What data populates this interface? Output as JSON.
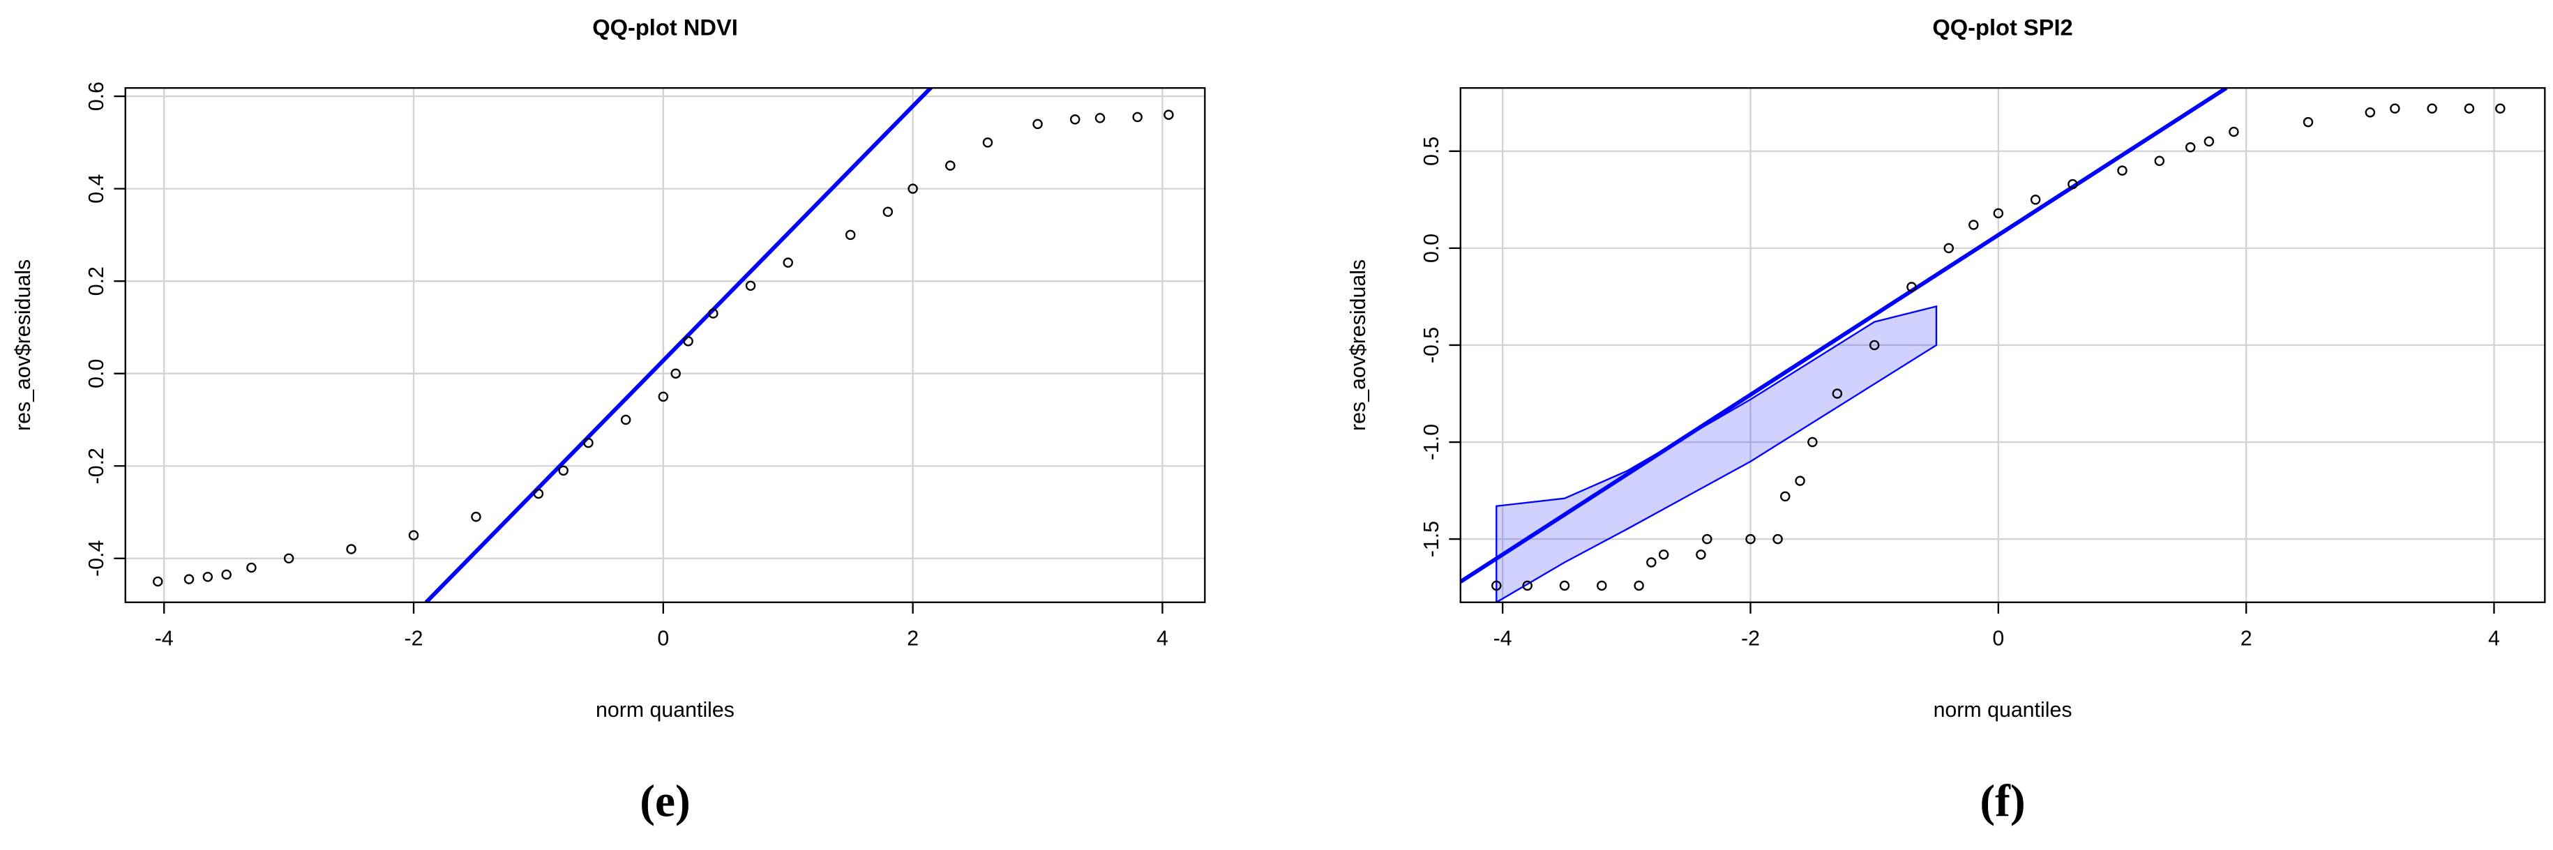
{
  "chart_data": [
    {
      "type": "scatter",
      "title": "QQ-plot NDVI",
      "x_label": "norm quantiles",
      "y_label": "res_aov$residuals",
      "caption": "(e)",
      "x": [
        -4.05,
        -3.8,
        -3.65,
        -3.5,
        -3.3,
        -3.0,
        -2.5,
        -2.0,
        -1.5,
        -1.0,
        -0.8,
        -0.6,
        -0.3,
        0.0,
        0.1,
        0.2,
        0.4,
        0.7,
        1.0,
        1.5,
        1.8,
        2.0,
        2.3,
        2.6,
        3.0,
        3.3,
        3.5,
        3.8,
        4.05
      ],
      "values": [
        -0.45,
        -0.445,
        -0.44,
        -0.435,
        -0.42,
        -0.4,
        -0.38,
        -0.35,
        -0.31,
        -0.26,
        -0.21,
        -0.15,
        -0.1,
        -0.05,
        0.0,
        0.07,
        0.13,
        0.19,
        0.24,
        0.3,
        0.35,
        0.4,
        0.45,
        0.5,
        0.54,
        0.55,
        0.553,
        0.555,
        0.56
      ],
      "color": "#000000",
      "reference_line": {
        "x": [
          -1.9,
          2.15
        ],
        "values": [
          -0.495,
          0.62
        ],
        "color": "#0000ff"
      },
      "xlim": [
        -4.31,
        4.34
      ],
      "ylim": [
        -0.495,
        0.618
      ],
      "xticks": [
        -4,
        -2,
        0,
        2,
        4
      ],
      "yticks": [
        -0.4,
        -0.2,
        {
          "value": 0,
          "label": "0.0"
        },
        0.2,
        0.4,
        0.6
      ],
      "grid": true
    },
    {
      "type": "scatter",
      "title": "QQ-plot SPI2",
      "x_label": "norm quantiles",
      "y_label": "res_aov$residuals",
      "caption": "(f)",
      "x": [
        -4.05,
        -3.8,
        -3.5,
        -3.2,
        -2.9,
        -2.8,
        -2.7,
        -2.4,
        -2.35,
        -2.0,
        -1.78,
        -1.72,
        -1.6,
        -1.5,
        -1.3,
        -1.0,
        -0.7,
        -0.4,
        -0.2,
        0.0,
        0.3,
        0.6,
        1.0,
        1.3,
        1.55,
        1.7,
        1.9,
        2.5,
        3.0,
        3.2,
        3.5,
        3.8,
        4.05
      ],
      "values": [
        -1.74,
        -1.74,
        -1.74,
        -1.74,
        -1.74,
        -1.62,
        -1.58,
        -1.58,
        -1.5,
        -1.5,
        -1.5,
        -1.28,
        -1.2,
        -1.0,
        -0.75,
        -0.5,
        -0.2,
        0.0,
        0.12,
        0.18,
        0.25,
        0.33,
        0.4,
        0.45,
        0.52,
        0.55,
        0.6,
        0.65,
        0.7,
        0.72,
        0.72,
        0.72,
        0.72
      ],
      "color": "#000000",
      "reference_line": {
        "x": [
          -4.34,
          1.84
        ],
        "values": [
          -1.72,
          0.826
        ],
        "color": "#0000ff"
      },
      "band": {
        "x": [
          -4.05,
          -3.5,
          -3.0,
          -2.0,
          -1.0,
          -0.5
        ],
        "lower": [
          -1.826,
          -1.62,
          -1.45,
          -1.1,
          -0.7,
          -0.5
        ],
        "upper": [
          -1.33,
          -1.29,
          -1.15,
          -0.78,
          -0.38,
          -0.3
        ],
        "color": "#0000ff"
      },
      "xlim": [
        -4.34,
        4.41
      ],
      "ylim": [
        -1.826,
        0.826
      ],
      "xticks": [
        -4,
        -2,
        0,
        2,
        4
      ],
      "yticks": [
        -1.5,
        {
          "value": -1,
          "label": "-1.0"
        },
        -0.5,
        {
          "value": 0,
          "label": "0.0"
        },
        0.5
      ],
      "grid": true
    }
  ]
}
